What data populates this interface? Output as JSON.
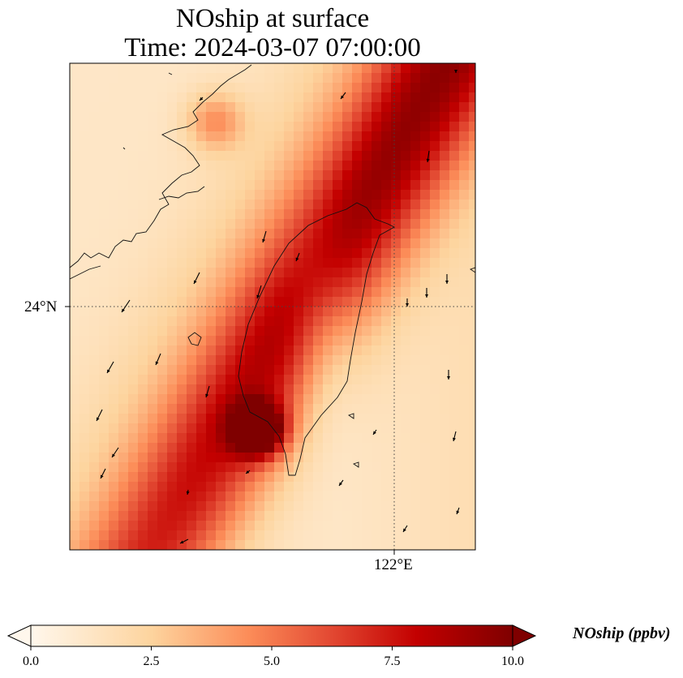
{
  "title_line1": "NOship at surface",
  "title_line2": "Time: 2024-03-07 07:00:00",
  "gridlines": {
    "lat": "24°N",
    "lon": "122°E"
  },
  "colorbar": {
    "label": "NOship (ppbv)",
    "ticks": [
      "0.0",
      "2.5",
      "5.0",
      "7.5",
      "10.0"
    ],
    "range": [
      0,
      10
    ],
    "extend": "both",
    "colormap": "OrRd"
  },
  "colors": {
    "low": "#fff7ec",
    "mid": "#fc8d59",
    "high": "#7f0000"
  }
}
